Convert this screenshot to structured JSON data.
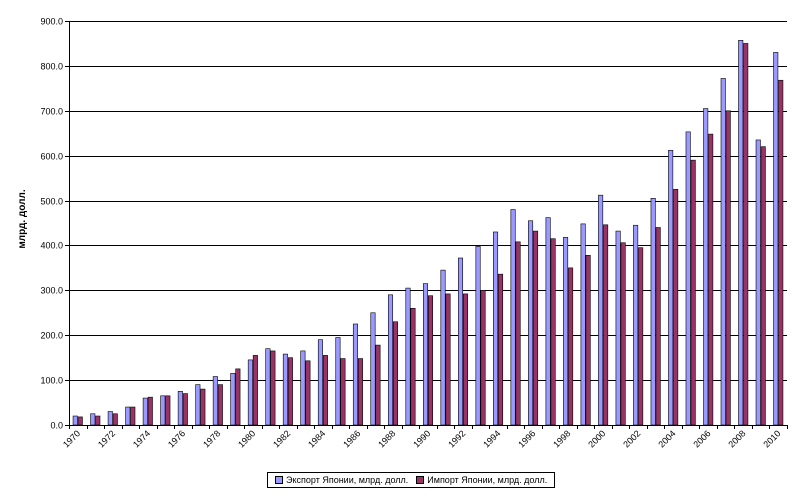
{
  "chart_data": {
    "type": "bar",
    "title": "",
    "xlabel": "",
    "ylabel": "млрд. долл.",
    "ylim": [
      0,
      900
    ],
    "yticks": [
      "0.0",
      "100.0",
      "200.0",
      "300.0",
      "400.0",
      "500.0",
      "600.0",
      "700.0",
      "800.0",
      "900.0"
    ],
    "grid": true,
    "legend_position": "bottom",
    "categories": [
      1970,
      1971,
      1972,
      1973,
      1974,
      1975,
      1976,
      1977,
      1978,
      1979,
      1980,
      1981,
      1982,
      1983,
      1984,
      1985,
      1986,
      1987,
      1988,
      1989,
      1990,
      1991,
      1992,
      1993,
      1994,
      1995,
      1996,
      1997,
      1998,
      1999,
      2000,
      2001,
      2002,
      2003,
      2004,
      2005,
      2006,
      2007,
      2008,
      2009,
      2010
    ],
    "xtick_labels": [
      "1970",
      "1972",
      "1974",
      "1976",
      "1978",
      "1980",
      "1982",
      "1984",
      "1986",
      "1988",
      "1990",
      "1992",
      "1994",
      "1996",
      "1998",
      "2000",
      "2002",
      "2004",
      "2006",
      "2008",
      "2010"
    ],
    "series": [
      {
        "name": "Экспорт Японии, млрд. долл.",
        "color": "#9999ff",
        "values": [
          20,
          25,
          30,
          40,
          60,
          65,
          75,
          90,
          108,
          115,
          145,
          170,
          158,
          165,
          190,
          195,
          225,
          250,
          290,
          305,
          315,
          345,
          372,
          398,
          430,
          480,
          455,
          462,
          418,
          448,
          512,
          432,
          445,
          505,
          612,
          653,
          705,
          772,
          857,
          635,
          830
        ]
      },
      {
        "name": "Импорт Японии, млрд. долл.",
        "color": "#993366",
        "values": [
          18,
          20,
          25,
          40,
          62,
          65,
          70,
          80,
          90,
          125,
          155,
          165,
          150,
          143,
          155,
          148,
          148,
          178,
          230,
          260,
          288,
          292,
          292,
          300,
          336,
          408,
          432,
          415,
          350,
          378,
          446,
          406,
          395,
          440,
          525,
          590,
          648,
          700,
          850,
          620,
          768
        ]
      }
    ]
  }
}
